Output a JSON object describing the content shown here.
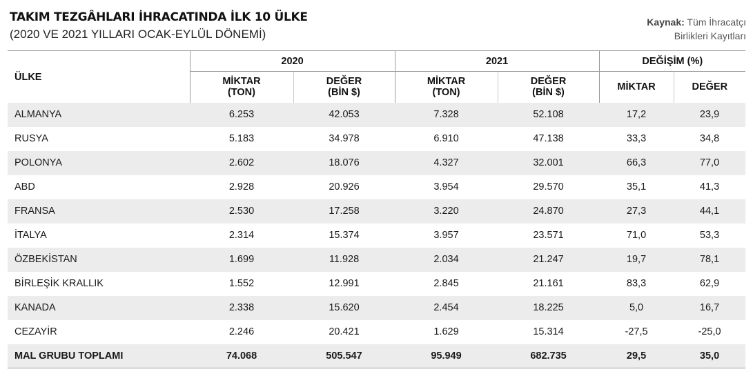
{
  "header": {
    "title": "TAKIM TEZGÂHLARI İHRACATINDA İLK 10 ÜLKE",
    "subtitle": "(2020 VE 2021 YILLARI OCAK-EYLÜL DÖNEMİ)",
    "source_label": "Kaynak:",
    "source_line1": "Tüm İhracatçı",
    "source_line2": "Birlikleri Kayıtları"
  },
  "chart_data": {
    "type": "table",
    "column_groups": [
      "2020",
      "2021",
      "DEĞİŞİM (%)"
    ],
    "country_header": "ÜLKE",
    "sub_headers": {
      "miktar_l1": "MİKTAR",
      "miktar_l2": "(TON)",
      "deger_l1": "DEĞER",
      "deger_l2": "(BİN $)",
      "change_miktar": "MİKTAR",
      "change_deger": "DEĞER"
    },
    "rows": [
      {
        "country": "ALMANYA",
        "m2020": "6.253",
        "d2020": "42.053",
        "m2021": "7.328",
        "d2021": "52.108",
        "cm": "17,2",
        "cd": "23,9"
      },
      {
        "country": "RUSYA",
        "m2020": "5.183",
        "d2020": "34.978",
        "m2021": "6.910",
        "d2021": "47.138",
        "cm": "33,3",
        "cd": "34,8"
      },
      {
        "country": "POLONYA",
        "m2020": "2.602",
        "d2020": "18.076",
        "m2021": "4.327",
        "d2021": "32.001",
        "cm": "66,3",
        "cd": "77,0"
      },
      {
        "country": "ABD",
        "m2020": "2.928",
        "d2020": "20.926",
        "m2021": "3.954",
        "d2021": "29.570",
        "cm": "35,1",
        "cd": "41,3"
      },
      {
        "country": "FRANSA",
        "m2020": "2.530",
        "d2020": "17.258",
        "m2021": "3.220",
        "d2021": "24.870",
        "cm": "27,3",
        "cd": "44,1"
      },
      {
        "country": "İTALYA",
        "m2020": "2.314",
        "d2020": "15.374",
        "m2021": "3.957",
        "d2021": "23.571",
        "cm": "71,0",
        "cd": "53,3"
      },
      {
        "country": "ÖZBEKİSTAN",
        "m2020": "1.699",
        "d2020": "11.928",
        "m2021": "2.034",
        "d2021": "21.247",
        "cm": "19,7",
        "cd": "78,1"
      },
      {
        "country": "BİRLEŞİK KRALLIK",
        "m2020": "1.552",
        "d2020": "12.991",
        "m2021": "2.845",
        "d2021": "21.161",
        "cm": "83,3",
        "cd": "62,9"
      },
      {
        "country": "KANADA",
        "m2020": "2.338",
        "d2020": "15.620",
        "m2021": "2.454",
        "d2021": "18.225",
        "cm": "5,0",
        "cd": "16,7"
      },
      {
        "country": "CEZAYİR",
        "m2020": "2.246",
        "d2020": "20.421",
        "m2021": "1.629",
        "d2021": "15.314",
        "cm": "-27,5",
        "cd": "-25,0"
      }
    ],
    "total": {
      "country": "MAL GRUBU TOPLAMI",
      "m2020": "74.068",
      "d2020": "505.547",
      "m2021": "95.949",
      "d2021": "682.735",
      "cm": "29,5",
      "cd": "35,0"
    }
  }
}
